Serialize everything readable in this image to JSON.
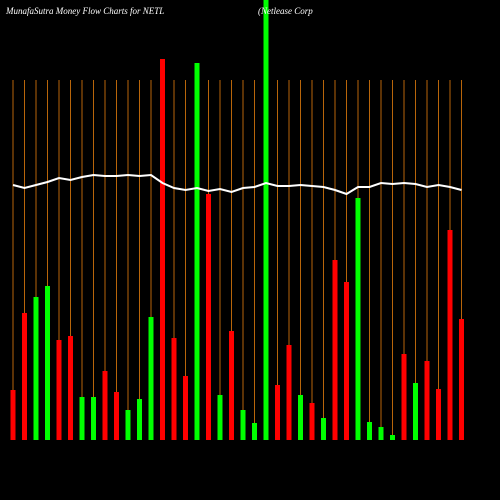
{
  "chart_data": {
    "type": "bar",
    "title": "MunafaSutra  Money Flow  Charts for NETL",
    "subtitle": "(Netlease  Corp",
    "categories": [
      null,
      null,
      null,
      null,
      null,
      null,
      null,
      null,
      null,
      null,
      null,
      null,
      null,
      null,
      null,
      null,
      null,
      null,
      null,
      null,
      null,
      null,
      null,
      null,
      null,
      null,
      null,
      null,
      null,
      null,
      null,
      null,
      null,
      null,
      null,
      null,
      null,
      null,
      null,
      null
    ],
    "values": [
      50,
      127,
      143,
      154,
      100,
      104,
      43,
      43,
      69,
      48,
      30,
      41,
      123,
      381,
      102,
      64,
      377,
      246,
      45,
      109,
      30,
      17,
      440,
      55,
      95,
      45,
      37,
      22,
      180,
      158,
      242,
      18,
      13,
      5,
      86,
      57,
      79,
      51,
      210,
      121
    ],
    "colors": [
      "#ff0000",
      "#ff0000",
      "#00ff00",
      "#00ff00",
      "#ff0000",
      "#ff0000",
      "#00ff00",
      "#00ff00",
      "#ff0000",
      "#ff0000",
      "#00ff00",
      "#00ff00",
      "#00ff00",
      "#ff0000",
      "#ff0000",
      "#ff0000",
      "#00ff00",
      "#ff0000",
      "#00ff00",
      "#ff0000",
      "#00ff00",
      "#00ff00",
      "#00ff00",
      "#ff0000",
      "#ff0000",
      "#00ff00",
      "#ff0000",
      "#00ff00",
      "#ff0000",
      "#ff0000",
      "#00ff00",
      "#00ff00",
      "#00ff00",
      "#00ff00",
      "#ff0000",
      "#00ff00",
      "#ff0000",
      "#ff0000",
      "#ff0000",
      "#ff0000"
    ],
    "line": {
      "color": "#ffffff",
      "values": [
        255,
        252,
        255,
        258,
        262,
        260,
        263,
        265,
        264,
        264,
        265,
        264,
        265,
        257,
        252,
        250,
        252,
        249,
        251,
        248,
        252,
        253,
        257,
        254,
        254,
        255,
        254,
        253,
        250,
        246,
        253,
        253,
        257,
        256,
        257,
        256,
        253,
        255,
        253,
        250
      ]
    },
    "ylim": [
      0,
      440
    ],
    "grid": true,
    "grid_color": "#b8650a"
  }
}
